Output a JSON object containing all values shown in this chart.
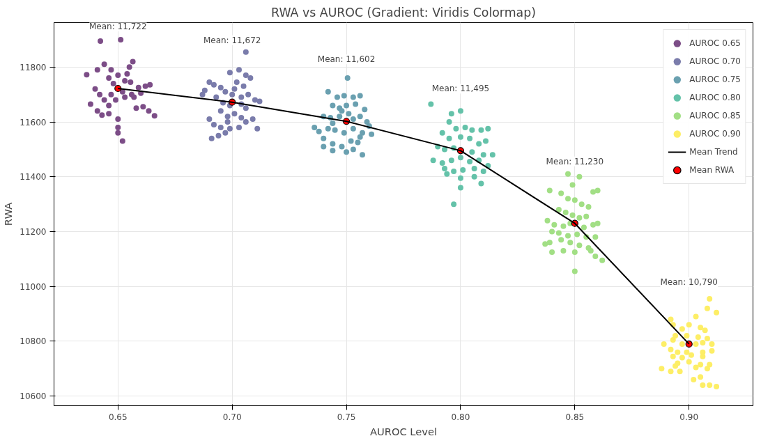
{
  "chart_data": {
    "type": "scatter",
    "title": "RWA vs AUROC (Gradient: Viridis Colormap)",
    "xlabel": "AUROC Level",
    "ylabel": "RWA",
    "xlim": [
      0.622,
      0.928
    ],
    "ylim": [
      10565,
      11962
    ],
    "xticks": [
      {
        "value": 0.65,
        "label": "0.65"
      },
      {
        "value": 0.7,
        "label": "0.70"
      },
      {
        "value": 0.75,
        "label": "0.75"
      },
      {
        "value": 0.8,
        "label": "0.80"
      },
      {
        "value": 0.85,
        "label": "0.85"
      },
      {
        "value": 0.9,
        "label": "0.90"
      }
    ],
    "yticks": [
      10600,
      10800,
      11000,
      11200,
      11400,
      11600,
      11800
    ],
    "grid": true,
    "legend": "top right",
    "series": [
      {
        "name": "AUROC 0.65",
        "color": "#7c4d87",
        "x": [
          0.6363,
          0.6423,
          0.6512,
          0.6565,
          0.655,
          0.644,
          0.641,
          0.646,
          0.648,
          0.65,
          0.653,
          0.6555,
          0.659,
          0.662,
          0.664,
          0.64,
          0.642,
          0.647,
          0.652,
          0.656,
          0.66,
          0.638,
          0.641,
          0.643,
          0.646,
          0.649,
          0.653,
          0.658,
          0.661,
          0.6635,
          0.666,
          0.646,
          0.65,
          0.65,
          0.65,
          0.652,
          0.644,
          0.647,
          0.654,
          0.657
        ],
        "values": [
          11772,
          11895,
          11900,
          11820,
          11800,
          11810,
          11790,
          11760,
          11740,
          11770,
          11750,
          11745,
          11725,
          11730,
          11735,
          11720,
          11700,
          11700,
          11710,
          11700,
          11705,
          11665,
          11640,
          11625,
          11660,
          11680,
          11690,
          11650,
          11655,
          11640,
          11622,
          11630,
          11610,
          11580,
          11560,
          11530,
          11680,
          11790,
          11775,
          11690
        ]
      },
      {
        "name": "AUROC 0.70",
        "color": "#7a7cab",
        "x": [
          0.706,
          0.699,
          0.703,
          0.706,
          0.708,
          0.688,
          0.692,
          0.69,
          0.695,
          0.697,
          0.701,
          0.705,
          0.707,
          0.71,
          0.712,
          0.687,
          0.693,
          0.696,
          0.699,
          0.704,
          0.706,
          0.695,
          0.698,
          0.701,
          0.704,
          0.69,
          0.692,
          0.695,
          0.699,
          0.703,
          0.706,
          0.709,
          0.711,
          0.694,
          0.697,
          0.691,
          0.7,
          0.702,
          0.704,
          0.698
        ],
        "values": [
          11855,
          11780,
          11790,
          11770,
          11760,
          11715,
          11735,
          11745,
          11725,
          11710,
          11720,
          11730,
          11700,
          11680,
          11675,
          11700,
          11690,
          11670,
          11660,
          11665,
          11650,
          11640,
          11620,
          11630,
          11615,
          11610,
          11590,
          11580,
          11575,
          11580,
          11600,
          11610,
          11575,
          11550,
          11560,
          11540,
          11700,
          11745,
          11690,
          11600
        ]
      },
      {
        "name": "AUROC 0.75",
        "color": "#6aa0b0",
        "x": [
          0.7505,
          0.742,
          0.746,
          0.749,
          0.753,
          0.756,
          0.744,
          0.747,
          0.75,
          0.754,
          0.758,
          0.74,
          0.743,
          0.747,
          0.751,
          0.756,
          0.759,
          0.736,
          0.738,
          0.742,
          0.745,
          0.749,
          0.753,
          0.757,
          0.761,
          0.74,
          0.744,
          0.748,
          0.752,
          0.755,
          0.74,
          0.744,
          0.75,
          0.753,
          0.757,
          0.76,
          0.753,
          0.748,
          0.744,
          0.756
        ],
        "values": [
          11760,
          11710,
          11690,
          11695,
          11690,
          11695,
          11660,
          11650,
          11660,
          11665,
          11645,
          11620,
          11615,
          11620,
          11630,
          11620,
          11600,
          11580,
          11565,
          11575,
          11570,
          11560,
          11575,
          11560,
          11555,
          11540,
          11520,
          11510,
          11530,
          11525,
          11510,
          11495,
          11490,
          11500,
          11480,
          11585,
          11610,
          11640,
          11595,
          11545
        ]
      },
      {
        "name": "AUROC 0.80",
        "color": "#64c2a9",
        "x": [
          0.787,
          0.796,
          0.8,
          0.795,
          0.798,
          0.802,
          0.805,
          0.809,
          0.812,
          0.792,
          0.795,
          0.8,
          0.804,
          0.808,
          0.811,
          0.79,
          0.793,
          0.797,
          0.801,
          0.805,
          0.81,
          0.814,
          0.788,
          0.792,
          0.796,
          0.8,
          0.804,
          0.808,
          0.812,
          0.793,
          0.797,
          0.801,
          0.806,
          0.81,
          0.794,
          0.8,
          0.806,
          0.809,
          0.8,
          0.797
        ],
        "values": [
          11665,
          11630,
          11640,
          11600,
          11575,
          11580,
          11570,
          11570,
          11575,
          11560,
          11540,
          11545,
          11540,
          11520,
          11530,
          11510,
          11500,
          11505,
          null,
          11490,
          11480,
          11480,
          11460,
          11450,
          11460,
          11470,
          11455,
          11460,
          11440,
          11430,
          11420,
          11425,
          11430,
          11420,
          11410,
          11395,
          11400,
          11375,
          11360,
          11300
        ]
      },
      {
        "name": "AUROC 0.85",
        "color": "#a2df85",
        "x": [
          0.847,
          0.852,
          0.849,
          0.839,
          0.844,
          0.858,
          0.86,
          0.847,
          0.85,
          0.853,
          0.856,
          0.843,
          0.846,
          0.849,
          0.852,
          0.855,
          0.838,
          0.841,
          0.845,
          0.848,
          0.854,
          0.858,
          0.86,
          0.84,
          0.843,
          0.847,
          0.851,
          0.855,
          0.859,
          0.837,
          0.839,
          0.844,
          0.848,
          0.852,
          0.856,
          0.84,
          0.845,
          0.85,
          0.859,
          0.862,
          0.85,
          0.857
        ],
        "values": [
          11410,
          11400,
          11370,
          11350,
          11340,
          11345,
          11350,
          11320,
          11315,
          11300,
          11290,
          11280,
          11270,
          11260,
          11250,
          11255,
          11240,
          11225,
          11220,
          11230,
          11215,
          11225,
          11230,
          11200,
          11195,
          11185,
          11190,
          11180,
          11180,
          11155,
          11160,
          11170,
          11160,
          11150,
          11140,
          11125,
          11130,
          11125,
          11110,
          11095,
          11055,
          11130
        ]
      },
      {
        "name": "AUROC 0.90",
        "color": "#fdee66",
        "x": [
          0.909,
          0.908,
          0.912,
          0.892,
          0.893,
          0.903,
          0.9,
          0.897,
          0.905,
          0.907,
          0.894,
          0.899,
          0.904,
          0.908,
          0.889,
          0.893,
          0.897,
          0.903,
          0.906,
          0.91,
          0.892,
          0.895,
          0.899,
          0.906,
          0.91,
          0.893,
          0.897,
          0.901,
          0.906,
          0.895,
          0.9,
          0.905,
          0.909,
          0.888,
          0.892,
          0.896,
          0.903,
          0.908,
          0.905,
          0.902,
          0.906,
          0.909,
          0.912,
          0.894
        ],
        "values": [
          10955,
          10920,
          10905,
          10880,
          10860,
          10890,
          10860,
          10845,
          10850,
          10840,
          10820,
          10820,
          10815,
          10810,
          10790,
          10805,
          10790,
          10790,
          10795,
          10790,
          10770,
          10760,
          10760,
          10760,
          10765,
          10745,
          10740,
          10750,
          10745,
          10720,
          10725,
          10715,
          10715,
          10700,
          10690,
          10690,
          10705,
          10700,
          10670,
          10660,
          10640,
          10640,
          10635,
          10710
        ]
      },
      {
        "name": "Mean Trend",
        "type": "line",
        "color": "#000000",
        "x": [
          0.65,
          0.7,
          0.75,
          0.8,
          0.85,
          0.9
        ],
        "values": [
          11722,
          11672,
          11602,
          11495,
          11230,
          10790
        ]
      },
      {
        "name": "Mean RWA",
        "color": "#ff0000",
        "x": [
          0.65,
          0.7,
          0.75,
          0.8,
          0.85,
          0.9
        ],
        "values": [
          11722,
          11672,
          11602,
          11495,
          11230,
          10790
        ]
      }
    ],
    "annotations": [
      "Mean: 11,722",
      "Mean: 11,672",
      "Mean: 11,602",
      "Mean: 11,495",
      "Mean: 11,230",
      "Mean: 10,790"
    ]
  }
}
